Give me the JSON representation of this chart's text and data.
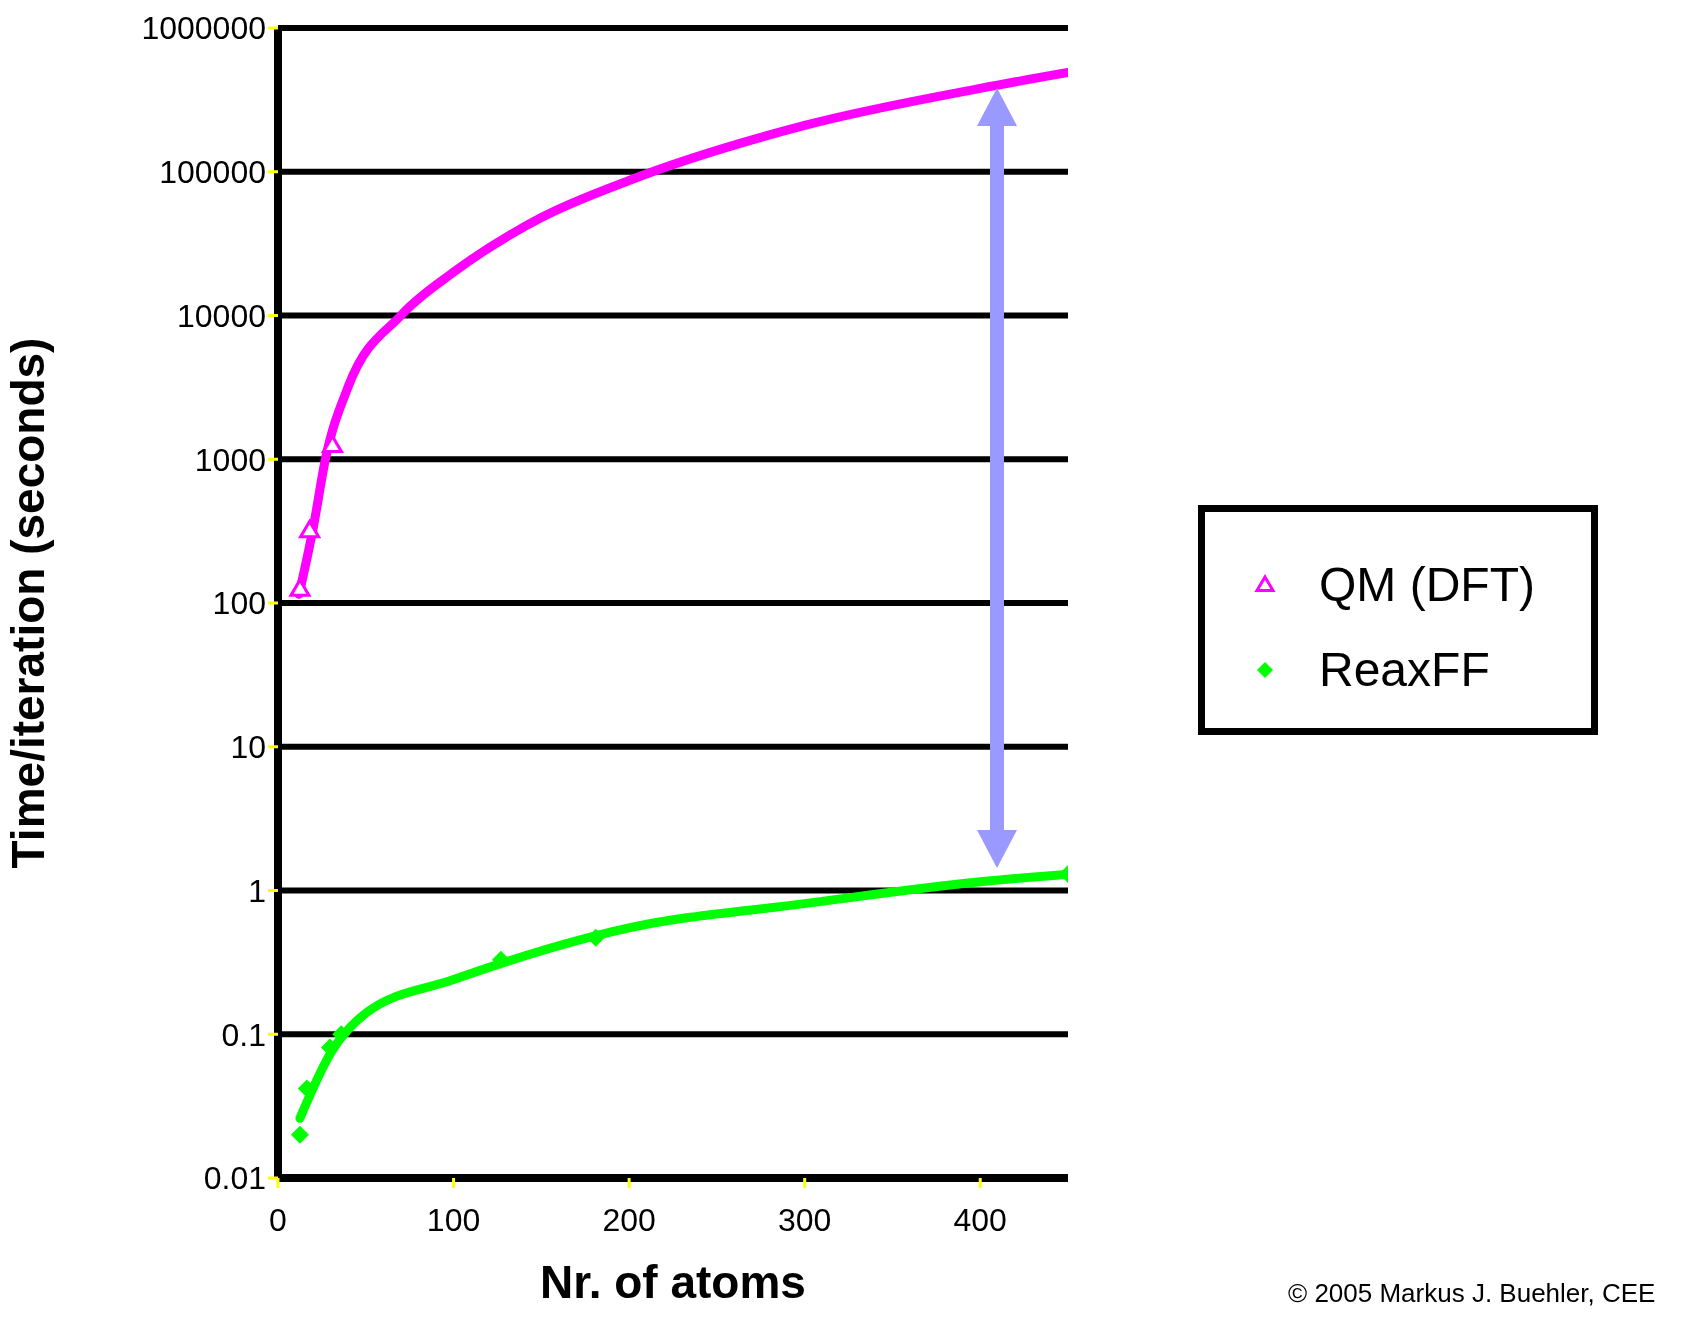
{
  "chart_data": {
    "type": "scatter",
    "xlabel": "Nr. of atoms",
    "ylabel": "Time/iteration (seconds)",
    "log": "y",
    "xlim": [
      0,
      450
    ],
    "xticks": [
      0,
      100,
      200,
      300,
      400
    ],
    "ylim": [
      0.01,
      1000000
    ],
    "yticks": [
      0.01,
      0.1,
      1,
      10,
      100,
      1000,
      10000,
      100000,
      1000000
    ],
    "grid": "y",
    "legend": "right",
    "line_style": "solid",
    "series": [
      {
        "type": "line",
        "marker": "none",
        "color": "#ff00ff",
        "x": [
          12,
          20,
          27,
          40,
          70,
          100,
          150,
          200,
          300,
          400,
          450
        ],
        "values": [
          115,
          330,
          1000,
          3200,
          10000,
          20000,
          48000,
          87000,
          210000,
          380000,
          490000
        ]
      },
      {
        "type": "line",
        "marker": "none",
        "color": "#00ff00",
        "x": [
          12.5,
          30,
          50,
          100,
          200,
          300,
          400,
          450
        ],
        "values": [
          0.026,
          0.074,
          0.14,
          0.24,
          0.55,
          0.81,
          1.15,
          1.3
        ]
      },
      {
        "name": "QM (DFT)",
        "marker": "triangle",
        "color": "#ff00ff",
        "x": [
          12.5,
          18,
          31
        ],
        "values": [
          125,
          320,
          1250
        ]
      },
      {
        "name": "ReaxFF",
        "marker": "diamond",
        "color": "#00ff00",
        "x": [
          12.5,
          16.4,
          29.6,
          36,
          127,
          181,
          450
        ],
        "values": [
          0.02,
          0.042,
          0.081,
          0.1,
          0.33,
          0.47,
          1.3
        ]
      }
    ],
    "annotations": [
      "© 2005 Markus J. Buehler, CEE"
    ]
  }
}
